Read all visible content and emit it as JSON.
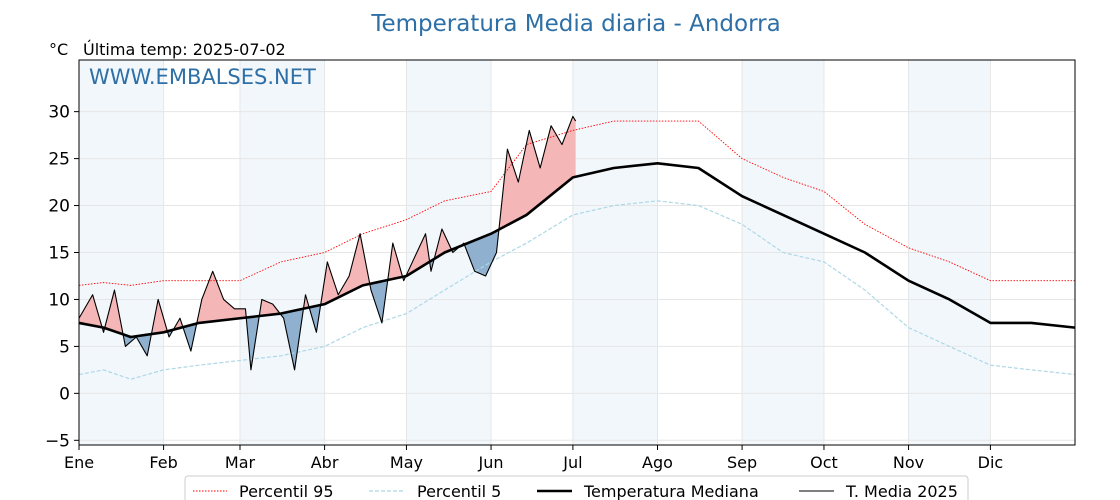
{
  "chart_data": {
    "type": "line",
    "title": "Temperatura Media diaria - Andorra",
    "units": "°C",
    "last_temp_label": "Última temp: 2025-07-02",
    "watermark": "WWW.EMBALSES.NET",
    "ylim": [
      -5.5,
      35.5
    ],
    "yticks": [
      -5,
      0,
      5,
      10,
      15,
      20,
      25,
      30
    ],
    "xlim": [
      1,
      366
    ],
    "months": [
      {
        "label": "Ene",
        "day": 1
      },
      {
        "label": "Feb",
        "day": 32
      },
      {
        "label": "Mar",
        "day": 60
      },
      {
        "label": "Abr",
        "day": 91
      },
      {
        "label": "May",
        "day": 121
      },
      {
        "label": "Jun",
        "day": 152
      },
      {
        "label": "Jul",
        "day": 182
      },
      {
        "label": "Ago",
        "day": 213
      },
      {
        "label": "Sep",
        "day": 244
      },
      {
        "label": "Oct",
        "day": 274
      },
      {
        "label": "Nov",
        "day": 305
      },
      {
        "label": "Dic",
        "day": 335
      }
    ],
    "grid": true,
    "legend_position": "bottom",
    "series": [
      {
        "name": "Percentil 95",
        "color": "#ff0000",
        "style": "dotted",
        "x": [
          1,
          10,
          20,
          32,
          45,
          60,
          75,
          91,
          105,
          121,
          135,
          152,
          165,
          182,
          197,
          213,
          228,
          244,
          259,
          274,
          289,
          305,
          320,
          335,
          350,
          366
        ],
        "y": [
          11.5,
          11.8,
          11.5,
          12,
          12,
          12,
          14,
          15,
          17,
          18.5,
          20.5,
          21.5,
          26.5,
          28,
          29,
          29,
          29,
          25,
          23,
          21.5,
          18,
          15.5,
          14,
          12,
          12,
          12
        ]
      },
      {
        "name": "Percentil 5",
        "color": "#add8e6",
        "style": "dashed",
        "x": [
          1,
          10,
          20,
          32,
          45,
          60,
          75,
          91,
          105,
          121,
          135,
          152,
          165,
          182,
          197,
          213,
          228,
          244,
          259,
          274,
          289,
          305,
          320,
          335,
          350,
          366
        ],
        "y": [
          2,
          2.5,
          1.5,
          2.5,
          3,
          3.5,
          4,
          5,
          7,
          8.5,
          11,
          14,
          16,
          19,
          20,
          20.5,
          20,
          18,
          15,
          14,
          11,
          7,
          5,
          3,
          2.5,
          2
        ]
      },
      {
        "name": "Temperatura Mediana",
        "color": "#000000",
        "style": "solid-thick",
        "x": [
          1,
          10,
          20,
          32,
          45,
          60,
          75,
          91,
          105,
          121,
          135,
          152,
          165,
          182,
          197,
          213,
          228,
          244,
          259,
          274,
          289,
          305,
          320,
          335,
          350,
          366
        ],
        "y": [
          7.5,
          7,
          6,
          6.5,
          7.5,
          8,
          8.5,
          9.5,
          11.5,
          12.5,
          15,
          17,
          19,
          23,
          24,
          24.5,
          24,
          21,
          19,
          17,
          15,
          12,
          10,
          7.5,
          7.5,
          7
        ]
      },
      {
        "name": "T. Media 2025",
        "color": "#000000",
        "style": "solid-thin",
        "x": [
          1,
          6,
          10,
          14,
          18,
          22,
          26,
          30,
          34,
          38,
          42,
          46,
          50,
          54,
          58,
          62,
          64,
          68,
          72,
          76,
          80,
          84,
          88,
          92,
          96,
          100,
          104,
          108,
          112,
          116,
          120,
          124,
          128,
          130,
          134,
          138,
          142,
          146,
          150,
          154,
          158,
          162,
          166,
          170,
          174,
          178,
          182,
          183
        ],
        "y": [
          8,
          10.5,
          6.5,
          11,
          5,
          6,
          4,
          10,
          6,
          8,
          4.5,
          10,
          13,
          10,
          9,
          9,
          2.5,
          10,
          9.5,
          8,
          2.5,
          10.5,
          6.5,
          14,
          10.5,
          12.5,
          17,
          11,
          7.5,
          16,
          12,
          14.5,
          17,
          13,
          17.5,
          15,
          16,
          13,
          12.5,
          15,
          26,
          22.5,
          28,
          24,
          28.5,
          26.5,
          29.5,
          29
        ]
      }
    ]
  }
}
